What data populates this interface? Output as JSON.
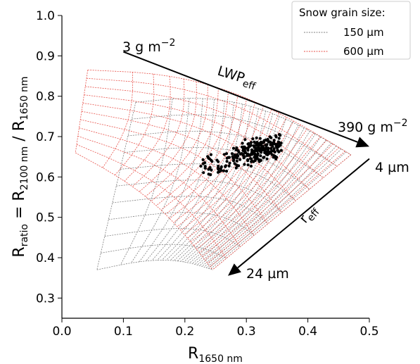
{
  "chart_data": {
    "type": "scatter",
    "title": "",
    "xlabel": {
      "main": "R",
      "sub": "1650 nm"
    },
    "ylabel": {
      "parts": [
        [
          "R",
          ""
        ],
        [
          "ratio",
          "sub"
        ],
        [
          " = R",
          ""
        ],
        [
          "2100 nm",
          "sub"
        ],
        [
          " / R",
          ""
        ],
        [
          "1650 nm",
          "sub"
        ]
      ]
    },
    "xlim": [
      0.0,
      0.5
    ],
    "ylim": [
      0.25,
      1.0
    ],
    "xticks": [
      0.0,
      0.1,
      0.2,
      0.3,
      0.4,
      0.5
    ],
    "xtick_labels": [
      "0.0",
      "0.1",
      "0.2",
      "0.3",
      "0.4",
      "0.5"
    ],
    "yticks": [
      0.3,
      0.4,
      0.5,
      0.6,
      0.7,
      0.8,
      0.9,
      1.0
    ],
    "ytick_labels": [
      "0.3",
      "0.4",
      "0.5",
      "0.6",
      "0.7",
      "0.8",
      "0.9",
      "1.0"
    ],
    "grid": false,
    "legend": {
      "title": "Snow grain size:",
      "placement": "top-right",
      "entries": [
        {
          "label": "150 µm",
          "color": "#808080",
          "style": "dashed"
        },
        {
          "label": "600 µm",
          "color": "#e8524a",
          "style": "dashed"
        }
      ]
    },
    "lut_grids": [
      {
        "name": "150 µm",
        "color": "#808080",
        "corners": {
          "min_lwp_min_reff": [
            0.12,
            0.785
          ],
          "min_lwp_max_reff": [
            0.057,
            0.37
          ],
          "max_lwp_min_reff": [
            0.47,
            0.655
          ],
          "max_lwp_max_reff": [
            0.245,
            0.37
          ]
        }
      },
      {
        "name": "600 µm",
        "color": "#e8524a",
        "corners": {
          "min_lwp_min_reff": [
            0.042,
            0.865
          ],
          "min_lwp_max_reff": [
            0.022,
            0.66
          ],
          "max_lwp_min_reff": [
            0.47,
            0.655
          ],
          "max_lwp_max_reff": [
            0.245,
            0.37
          ]
        }
      }
    ],
    "annotations": {
      "lwp_start": "3 g m",
      "lwp_start_sup": "−2",
      "lwp_label": "LWP",
      "lwp_label_sub": "eff",
      "lwp_end": "390 g m",
      "lwp_end_sup": "−2",
      "reff_start": "4 µm",
      "reff_label": "r",
      "reff_label_sub": "eff",
      "reff_end": "24 µm",
      "lwp_arrow": {
        "from": [
          0.1,
          0.91
        ],
        "to": [
          0.5,
          0.675
        ]
      },
      "reff_arrow": {
        "from": [
          0.5,
          0.645
        ],
        "to": [
          0.27,
          0.355
        ]
      }
    },
    "observations": {
      "color": "#000000",
      "x_range": [
        0.225,
        0.365
      ],
      "y_range": [
        0.565,
        0.705
      ],
      "center": [
        0.32,
        0.665
      ],
      "tail_start": [
        0.23,
        0.625
      ]
    }
  }
}
